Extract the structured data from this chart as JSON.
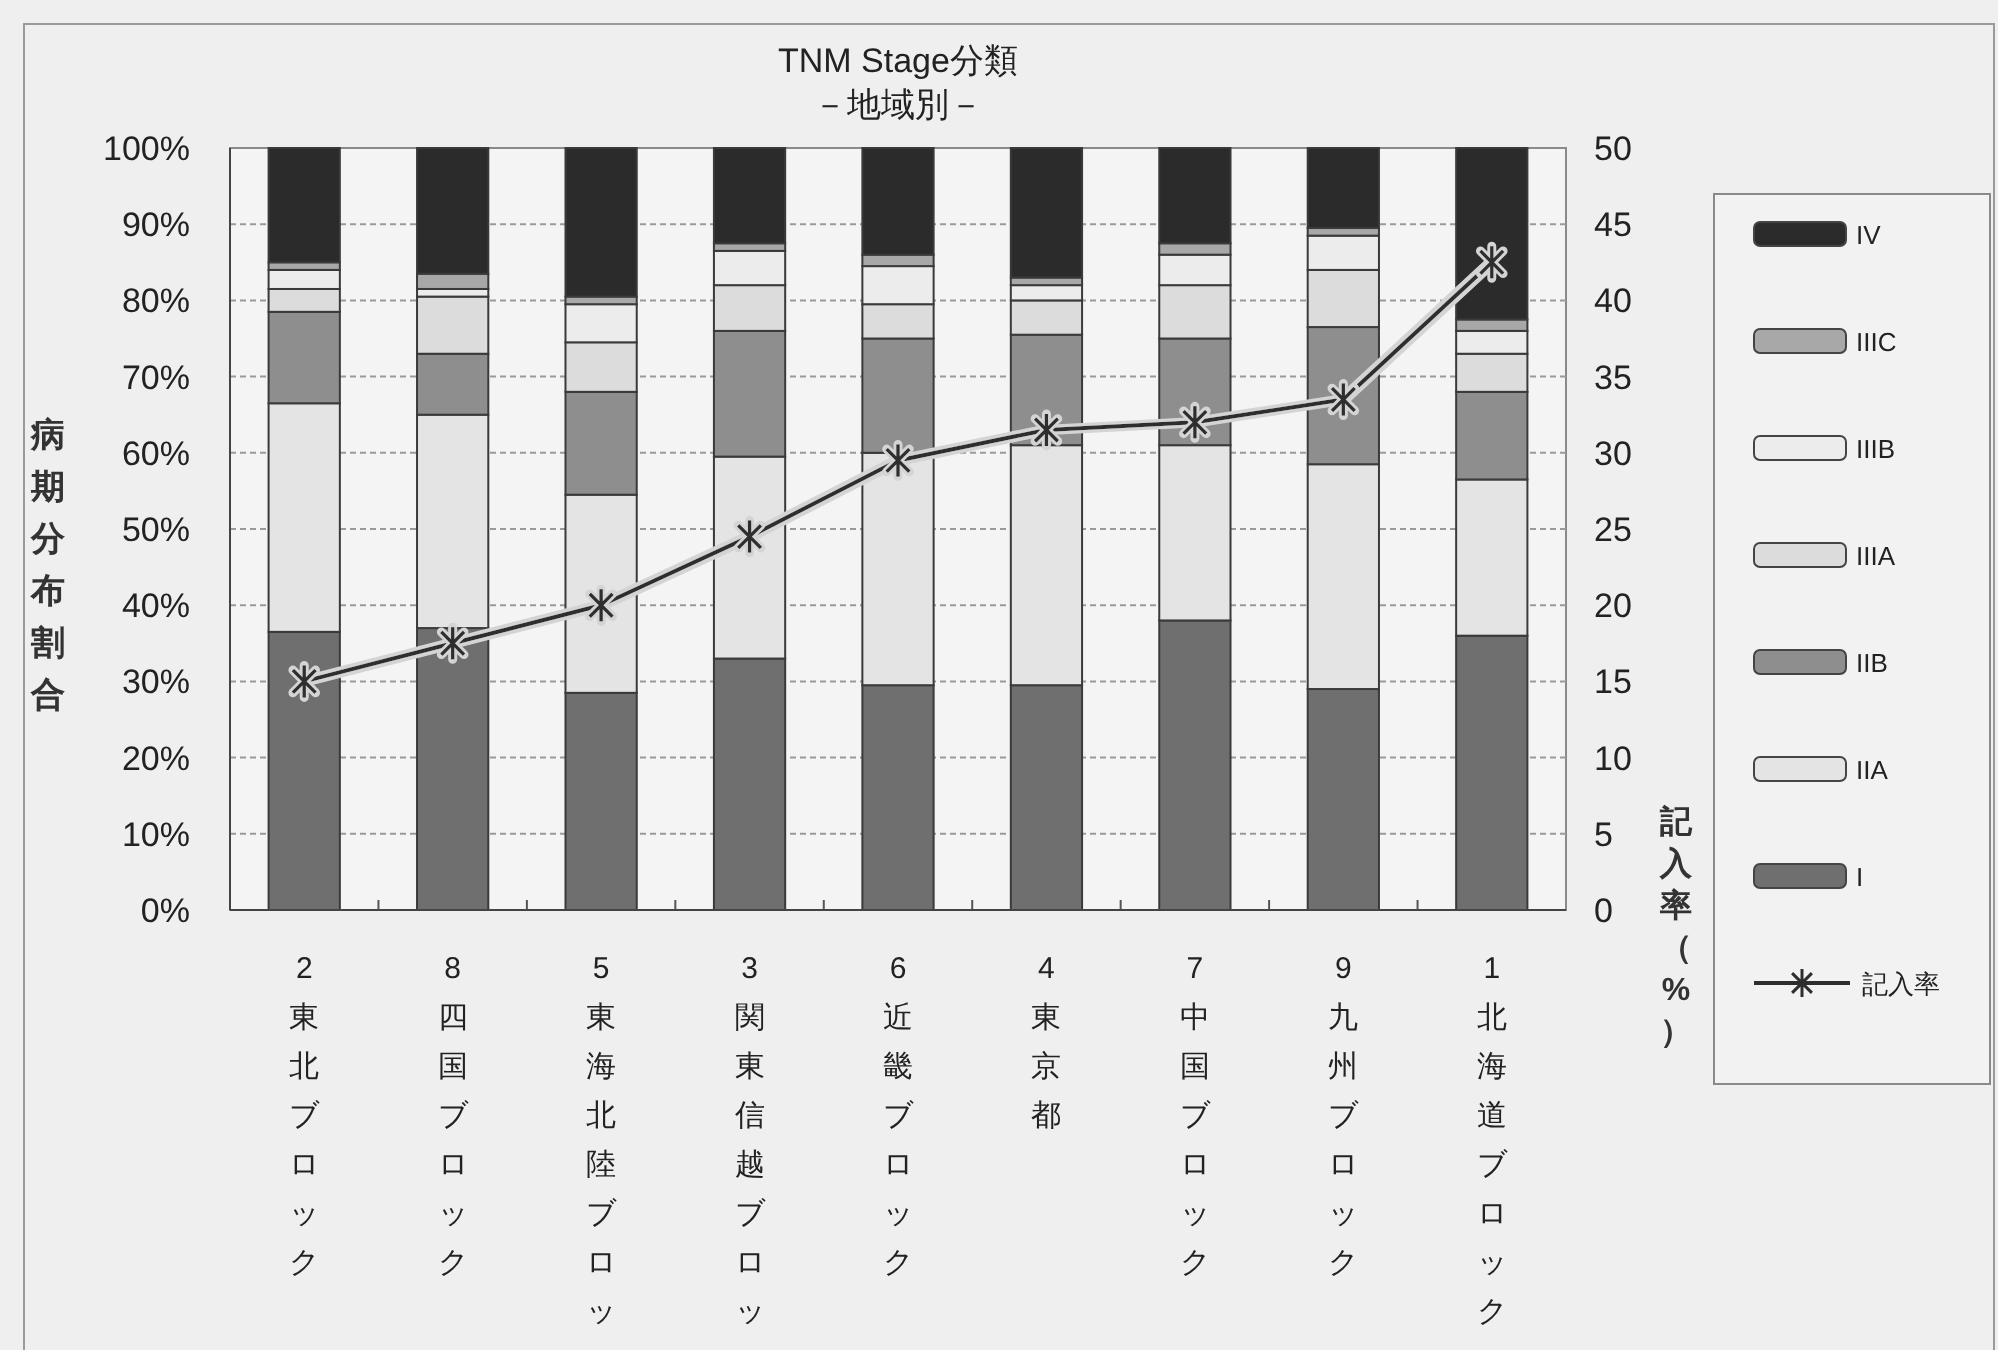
{
  "chart_data": {
    "type": "bar",
    "title": "TNM Stage分類",
    "subtitle": "－地域別－",
    "ylabel": "病期分布割合",
    "y2label": "記入率（%）",
    "categories": [
      "2東北ブロック",
      "8四国ブロック",
      "5東海北陸ブロッ",
      "3関東信越ブロッ",
      "6近畿ブロック",
      "4東京都",
      "7中国ブロック",
      "9九州ブロック",
      "1北海道ブロック"
    ],
    "stacked": true,
    "grid": "y",
    "legend": "right",
    "ylim": [
      0,
      100
    ],
    "yticks": [
      {
        "value": 0,
        "label": "0%"
      },
      {
        "value": 10,
        "label": "10%"
      },
      {
        "value": 20,
        "label": "20%"
      },
      {
        "value": 30,
        "label": "30%"
      },
      {
        "value": 40,
        "label": "40%"
      },
      {
        "value": 50,
        "label": "50%"
      },
      {
        "value": 60,
        "label": "60%"
      },
      {
        "value": 70,
        "label": "70%"
      },
      {
        "value": 80,
        "label": "80%"
      },
      {
        "value": 90,
        "label": "90%"
      },
      {
        "value": 100,
        "label": "100%"
      }
    ],
    "y2lim": [
      0,
      50
    ],
    "y2ticks": [
      0,
      5,
      10,
      15,
      20,
      25,
      30,
      35,
      40,
      45,
      50
    ],
    "series": [
      {
        "name": "I",
        "color": "#6f6f6f",
        "values": [
          36.5,
          37,
          28.5,
          33,
          29.5,
          29.5,
          38,
          29,
          36
        ]
      },
      {
        "name": "IIA",
        "color": "#e4e4e4",
        "values": [
          30,
          28,
          26,
          26.5,
          30.5,
          31.5,
          23,
          29.5,
          20.5
        ]
      },
      {
        "name": "IIB",
        "color": "#8e8e8e",
        "values": [
          12,
          8,
          13.5,
          16.5,
          15,
          14.5,
          14,
          18,
          11.5
        ]
      },
      {
        "name": "IIIA",
        "color": "#dcdcdc",
        "values": [
          3,
          7.5,
          6.5,
          6,
          4.5,
          4.5,
          7,
          7.5,
          5
        ]
      },
      {
        "name": "IIIB",
        "color": "#ececec",
        "values": [
          2.5,
          1,
          5,
          4.5,
          5,
          2,
          4,
          4.5,
          3
        ]
      },
      {
        "name": "IIIC",
        "color": "#a8a8a8",
        "values": [
          1,
          2,
          1,
          1,
          1.5,
          1,
          1.5,
          1,
          1.5
        ]
      },
      {
        "name": "IV",
        "color": "#2b2b2b",
        "values": [
          15,
          16.5,
          19.5,
          12.5,
          14,
          17,
          12.5,
          10.5,
          22.5
        ]
      },
      {
        "name": "記入率",
        "type": "line",
        "axis": "y2",
        "marker": "cross",
        "color": "#2e2e2e",
        "values": [
          15,
          17.5,
          20,
          24.5,
          29.5,
          31.5,
          32,
          33.5,
          42.5
        ]
      }
    ]
  }
}
